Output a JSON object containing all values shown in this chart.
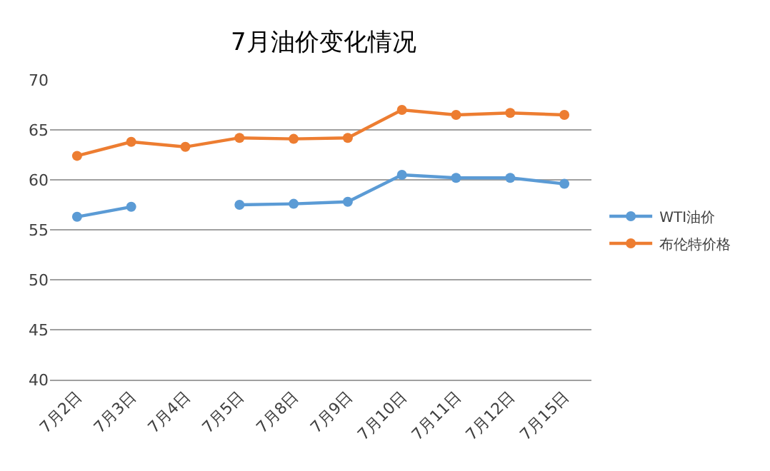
{
  "chart_data": {
    "type": "line",
    "title": "7月油价变化情况",
    "categories": [
      "7月2日",
      "7月3日",
      "7月4日",
      "7月5日",
      "7月8日",
      "7月9日",
      "7月10日",
      "7月11日",
      "7月12日",
      "7月15日"
    ],
    "series": [
      {
        "name": "WTI油价",
        "color": "#5b9bd5",
        "values": [
          56.3,
          57.3,
          null,
          57.5,
          57.6,
          57.8,
          60.5,
          60.2,
          60.2,
          59.6
        ]
      },
      {
        "name": "布伦特价格",
        "color": "#ed7d31",
        "values": [
          62.4,
          63.8,
          63.3,
          64.2,
          64.1,
          64.2,
          67.0,
          66.5,
          66.7,
          66.5
        ]
      }
    ],
    "ylim": [
      40,
      70
    ],
    "yticks": [
      40,
      45,
      50,
      55,
      60,
      65,
      70
    ],
    "grid": "y",
    "legend": "right",
    "marker": "circle",
    "line_style": "solid"
  }
}
